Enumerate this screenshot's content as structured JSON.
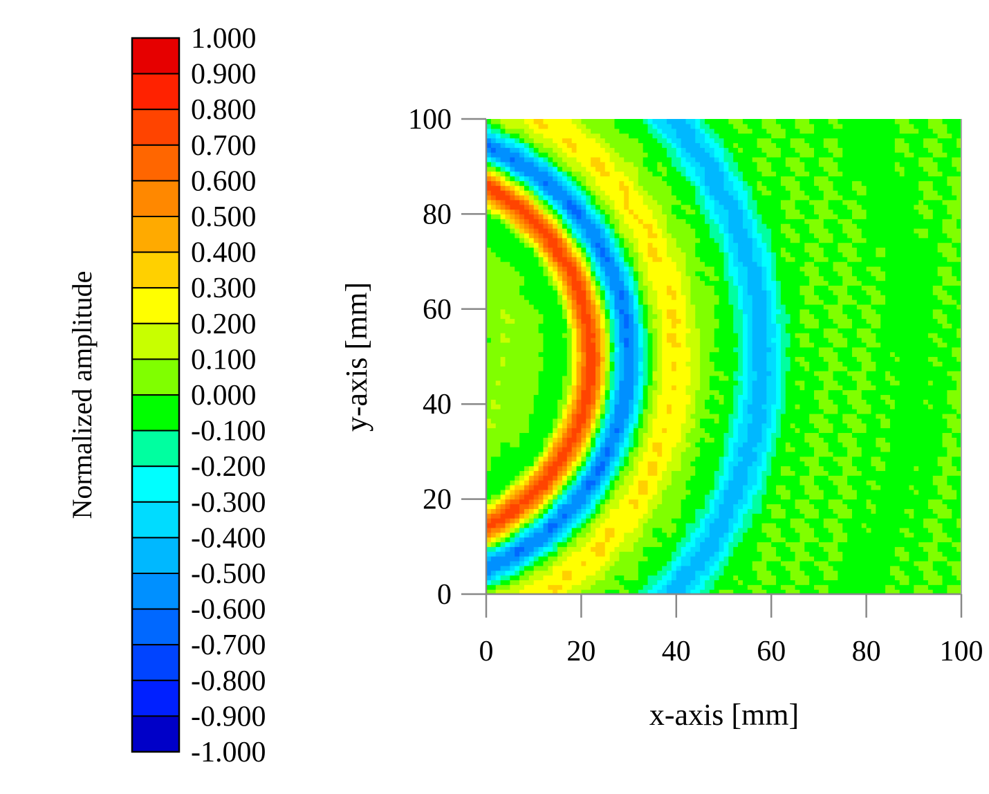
{
  "chart_data": {
    "type": "heatmap",
    "title": "",
    "xlabel": "x-axis [mm]",
    "ylabel": "y-axis [mm]",
    "xlim": [
      0,
      100
    ],
    "ylim": [
      0,
      100
    ],
    "x_ticks": [
      "0",
      "20",
      "40",
      "60",
      "80",
      "100"
    ],
    "y_ticks": [
      "0",
      "20",
      "40",
      "60",
      "80",
      "100"
    ],
    "grid": false,
    "description_of_field": "",
    "colorbar": {
      "label": "Normalized amplitude",
      "placement": "left",
      "levels": [
        "1.000",
        "0.900",
        "0.800",
        "0.700",
        "0.600",
        "0.500",
        "0.400",
        "0.300",
        "0.200",
        "0.100",
        "0.000",
        "-0.100",
        "-0.200",
        "-0.300",
        "-0.400",
        "-0.500",
        "-0.600",
        "-0.700",
        "-0.800",
        "-0.900",
        "-1.000"
      ],
      "colors": [
        "#e60000",
        "#ff2200",
        "#ff4400",
        "#ff6600",
        "#ff8800",
        "#ffaa00",
        "#ffd000",
        "#ffff00",
        "#c8ff00",
        "#80ff00",
        "#00ff00",
        "#00ffa0",
        "#00ffff",
        "#00dcff",
        "#00b8ff",
        "#0090ff",
        "#0068ff",
        "#0044ff",
        "#0020ff",
        "#0000c8"
      ]
    },
    "wave_source": {
      "x": -18,
      "y": 50
    },
    "wavefront_bands": [
      {
        "radius_mm": 40,
        "value": 0.75
      },
      {
        "radius_mm": 48,
        "value": -0.6
      },
      {
        "radius_mm": 58,
        "value": 0.3
      },
      {
        "radius_mm": 76,
        "value": -0.45
      },
      {
        "radius_mm": 108,
        "value": -0.05
      }
    ]
  }
}
